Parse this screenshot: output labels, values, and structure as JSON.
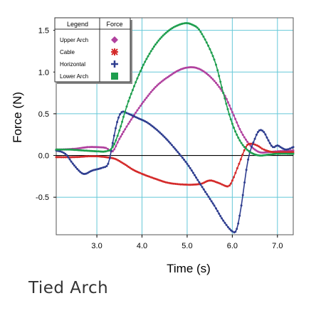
{
  "caption": "Tied Arch",
  "chart_data": {
    "type": "line",
    "title": "",
    "xlabel": "Time (s)",
    "ylabel": "Force (N)",
    "xlim": [
      2.1,
      7.35
    ],
    "ylim": [
      -0.95,
      1.65
    ],
    "xticks": [
      3.0,
      4.0,
      5.0,
      6.0,
      7.0
    ],
    "xtick_labels": [
      "3.0",
      "4.0",
      "5.0",
      "6.0",
      "7.0"
    ],
    "yticks": [
      -0.5,
      0.0,
      0.5,
      1.0,
      1.5
    ],
    "ytick_labels": [
      "-0.5",
      "0.0",
      "0.5",
      "1.0",
      "1.5"
    ],
    "grid": true,
    "colors": {
      "grid": "#66c8d8",
      "axis": "#000000",
      "frame": "#555555"
    },
    "legend": {
      "position": "top-left",
      "header_left": "Legend",
      "header_right": "Force"
    },
    "series": [
      {
        "name": "Upper Arch",
        "color": "#b0419e",
        "marker": "diamond",
        "x": [
          2.1,
          2.5,
          2.8,
          3.0,
          3.2,
          3.35,
          3.5,
          3.7,
          4.0,
          4.3,
          4.6,
          4.9,
          5.2,
          5.5,
          5.8,
          6.0,
          6.2,
          6.4,
          6.6,
          6.8,
          7.0,
          7.35
        ],
        "y": [
          0.07,
          0.08,
          0.1,
          0.1,
          0.09,
          0.05,
          0.2,
          0.38,
          0.62,
          0.82,
          0.95,
          1.04,
          1.05,
          0.95,
          0.75,
          0.52,
          0.28,
          0.12,
          0.04,
          0.04,
          0.05,
          0.06
        ]
      },
      {
        "name": "Cable",
        "color": "#d42a2a",
        "marker": "asterisk",
        "x": [
          2.1,
          2.5,
          2.8,
          3.0,
          3.2,
          3.4,
          3.6,
          3.8,
          4.0,
          4.3,
          4.6,
          5.0,
          5.3,
          5.5,
          5.7,
          5.9,
          6.0,
          6.15,
          6.3,
          6.4,
          6.55,
          6.7,
          6.9,
          7.1,
          7.35
        ],
        "y": [
          -0.02,
          -0.02,
          -0.01,
          -0.01,
          -0.02,
          -0.04,
          -0.1,
          -0.17,
          -0.22,
          -0.28,
          -0.33,
          -0.35,
          -0.34,
          -0.3,
          -0.33,
          -0.37,
          -0.3,
          -0.1,
          0.1,
          0.14,
          0.12,
          0.07,
          0.04,
          0.04,
          0.04
        ]
      },
      {
        "name": "Horizontal",
        "color": "#2e3d8f",
        "marker": "plus",
        "x": [
          2.1,
          2.3,
          2.5,
          2.7,
          2.9,
          3.1,
          3.25,
          3.35,
          3.45,
          3.55,
          3.7,
          3.9,
          4.1,
          4.3,
          4.5,
          4.7,
          5.0,
          5.3,
          5.6,
          5.8,
          6.0,
          6.1,
          6.2,
          6.35,
          6.5,
          6.6,
          6.7,
          6.8,
          6.9,
          7.0,
          7.1,
          7.2,
          7.35
        ],
        "y": [
          0.06,
          0.02,
          -0.12,
          -0.22,
          -0.18,
          -0.15,
          -0.1,
          0.15,
          0.4,
          0.52,
          0.5,
          0.45,
          0.4,
          0.32,
          0.22,
          0.1,
          -0.1,
          -0.35,
          -0.6,
          -0.78,
          -0.91,
          -0.88,
          -0.6,
          -0.05,
          0.2,
          0.3,
          0.28,
          0.18,
          0.1,
          0.12,
          0.09,
          0.07,
          0.1
        ]
      },
      {
        "name": "Lower Arch",
        "color": "#1e9e4e",
        "marker": "square",
        "x": [
          2.1,
          2.4,
          2.7,
          3.0,
          3.2,
          3.35,
          3.5,
          3.7,
          4.0,
          4.3,
          4.6,
          4.9,
          5.1,
          5.3,
          5.6,
          5.8,
          6.0,
          6.2,
          6.4,
          6.6,
          6.8,
          7.0,
          7.35
        ],
        "y": [
          0.07,
          0.07,
          0.06,
          0.05,
          0.05,
          0.1,
          0.3,
          0.65,
          1.05,
          1.33,
          1.5,
          1.58,
          1.57,
          1.48,
          1.15,
          0.75,
          0.38,
          0.15,
          0.04,
          0.0,
          0.01,
          0.02,
          0.02
        ]
      }
    ]
  }
}
